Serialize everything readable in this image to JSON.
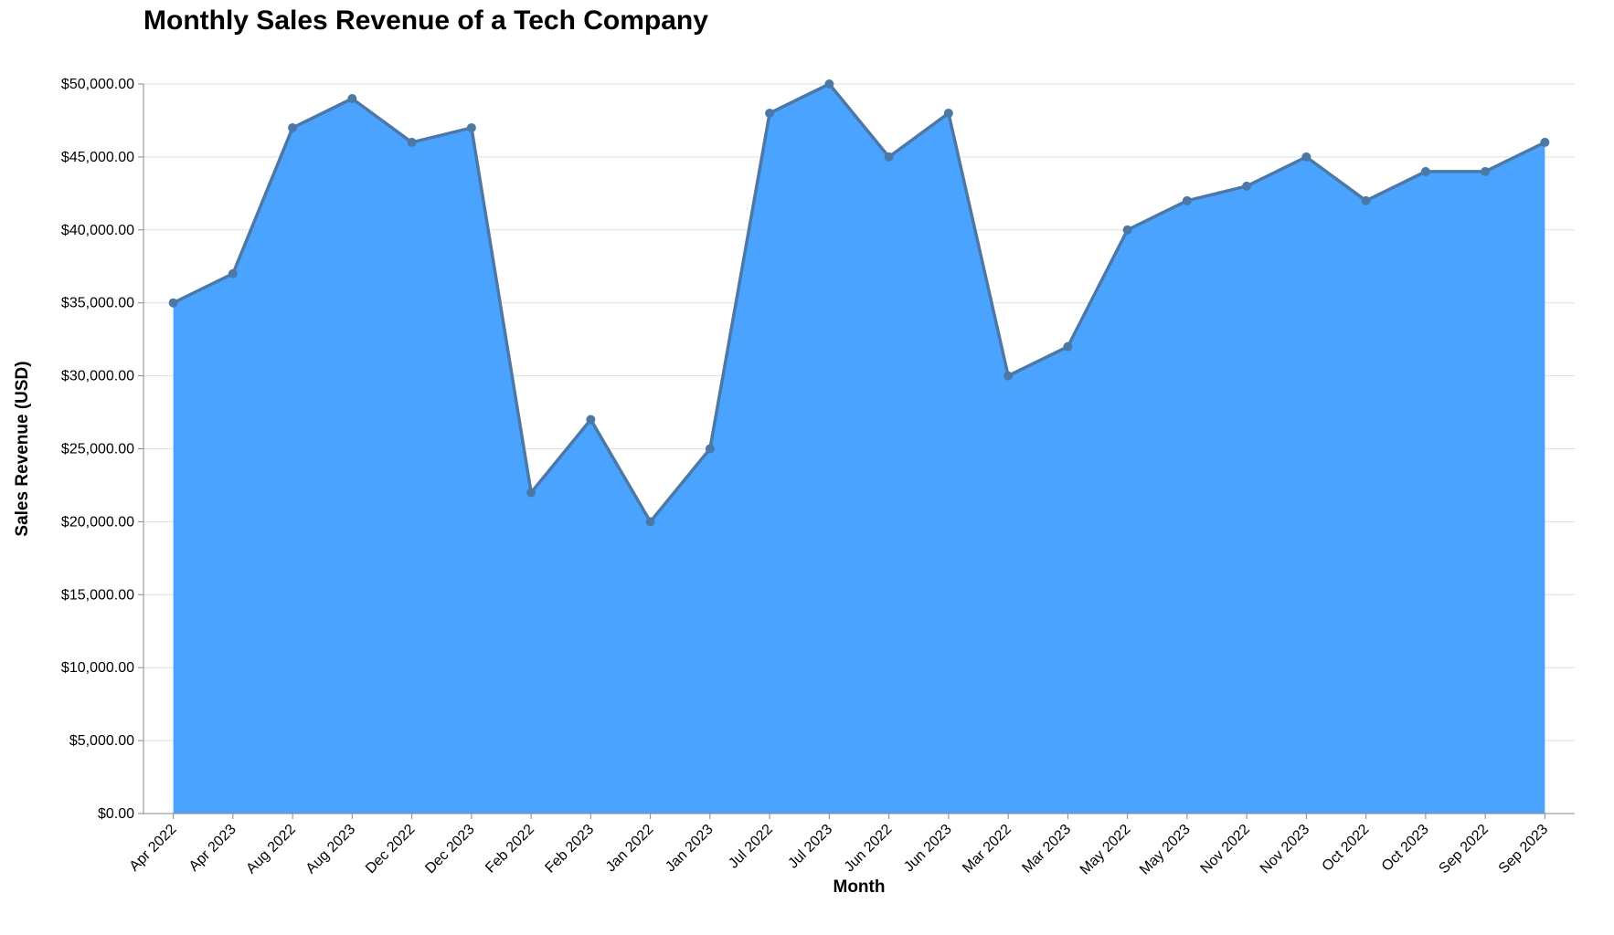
{
  "chart_data": {
    "type": "area",
    "title": "Monthly Sales Revenue of a Tech Company",
    "xlabel": "Month",
    "ylabel": "Sales Revenue (USD)",
    "categories": [
      "Apr 2022",
      "Apr 2023",
      "Aug 2022",
      "Aug 2023",
      "Dec 2022",
      "Dec 2023",
      "Feb 2022",
      "Feb 2023",
      "Jan 2022",
      "Jan 2023",
      "Jul 2022",
      "Jul 2023",
      "Jun 2022",
      "Jun 2023",
      "Mar 2022",
      "Mar 2023",
      "May 2022",
      "May 2023",
      "Nov 2022",
      "Nov 2023",
      "Oct 2022",
      "Oct 2023",
      "Sep 2022",
      "Sep 2023"
    ],
    "values": [
      35000,
      37000,
      47000,
      49000,
      46000,
      47000,
      22000,
      27000,
      20000,
      25000,
      48000,
      50000,
      45000,
      48000,
      30000,
      32000,
      40000,
      42000,
      43000,
      45000,
      42000,
      44000,
      44000,
      46000
    ],
    "ylim": [
      0,
      50000
    ],
    "yticks": [
      0,
      5000,
      10000,
      15000,
      20000,
      25000,
      30000,
      35000,
      40000,
      45000,
      50000
    ],
    "ytick_labels": [
      "$0.00",
      "$5,000.00",
      "$10,000.00",
      "$15,000.00",
      "$20,000.00",
      "$25,000.00",
      "$30,000.00",
      "$35,000.00",
      "$40,000.00",
      "$45,000.00",
      "$50,000.00"
    ],
    "grid": true,
    "colors": {
      "area": "#4aa3ff",
      "line": "#4c78a8",
      "grid": "#dddddd",
      "axis": "#888888"
    }
  }
}
